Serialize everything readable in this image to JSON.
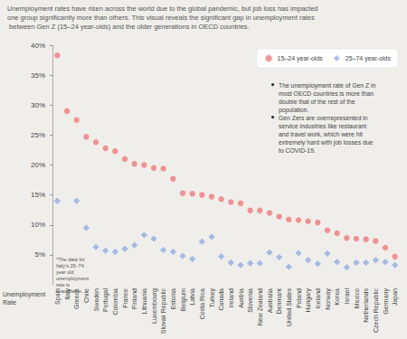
{
  "chart_data": {
    "type": "scatter",
    "subtitle": "Unemployment rates have risen across the world due to the global pandemic, but job loss has impacted one group significantly more than others. This visual reveals the significant gap in unemployment rates between Gen Z (15–24 year-olds) and the older generations in OECD countries.",
    "ylabel": "Unemployment Rate",
    "annotations": [
      "The unemployment rate of Gen Z in most OECD countries is more than double that of the rest of the population.",
      "Gen Zers are overrepresented in service industries like restaurant and travel work, which were hit extremely hard with job losses due to COVID-19.",
      "*The data for Italy's 25–74 year old unemployment rate is unavailable."
    ],
    "categories": [
      "Spain",
      "Italy",
      "Greece",
      "Chile",
      "Sweden",
      "Portugal",
      "Colombia",
      "France",
      "Finland",
      "Lithuania",
      "Luxembourg",
      "Slovak Republic",
      "Estonia",
      "Belgium",
      "Latvia",
      "Costa Rica",
      "Turkey",
      "Canada",
      "Ireland",
      "Austria",
      "Slovenia",
      "New Zealand",
      "Australia",
      "Denmark",
      "United States",
      "Poland",
      "Hungary",
      "Iceland",
      "Norway",
      "Korea",
      "Israel",
      "Mexico",
      "Netherlands",
      "Czech Republic",
      "Germany",
      "Japan"
    ],
    "series": [
      {
        "name": "15–24 year-olds",
        "color": "#ec7b7c",
        "marker": "circle",
        "values": [
          38.3,
          29,
          27.5,
          24.7,
          23.8,
          22.8,
          22.3,
          21,
          20.2,
          20,
          19.5,
          19.4,
          17.7,
          15.3,
          15.2,
          15,
          14.7,
          14.3,
          13.8,
          13.6,
          12.4,
          12.4,
          12,
          11.4,
          10.9,
          10.8,
          10.6,
          10.4,
          9.1,
          8.6,
          7.8,
          7.7,
          7.6,
          7.3,
          6.2,
          4.7
        ]
      },
      {
        "name": "25–74 year-olds",
        "color": "#93acdf",
        "marker": "diamond",
        "values": [
          14,
          null,
          14,
          9.5,
          6.3,
          5.7,
          5.5,
          6,
          6.6,
          8.3,
          7.7,
          5.8,
          5.5,
          4.8,
          4.3,
          7.2,
          8,
          4.7,
          3.7,
          3.3,
          3.6,
          3.6,
          5.4,
          4.6,
          3,
          5.3,
          4.1,
          3.5,
          5.2,
          3.8,
          2.9,
          3.7,
          3.7,
          4.1,
          3.8,
          3.3
        ]
      }
    ],
    "ylim": [
      0,
      40
    ],
    "yticks": [
      {
        "value": 5,
        "label": "5%"
      },
      {
        "value": 10,
        "label": "10%"
      },
      {
        "value": 15,
        "label": "15%"
      },
      {
        "value": 20,
        "label": "20%"
      },
      {
        "value": 25,
        "label": "25%"
      },
      {
        "value": 30,
        "label": "30%"
      },
      {
        "value": 35,
        "label": "35%"
      },
      {
        "value": 40,
        "label": "40%"
      }
    ],
    "grid": false,
    "legend": "upper right"
  }
}
